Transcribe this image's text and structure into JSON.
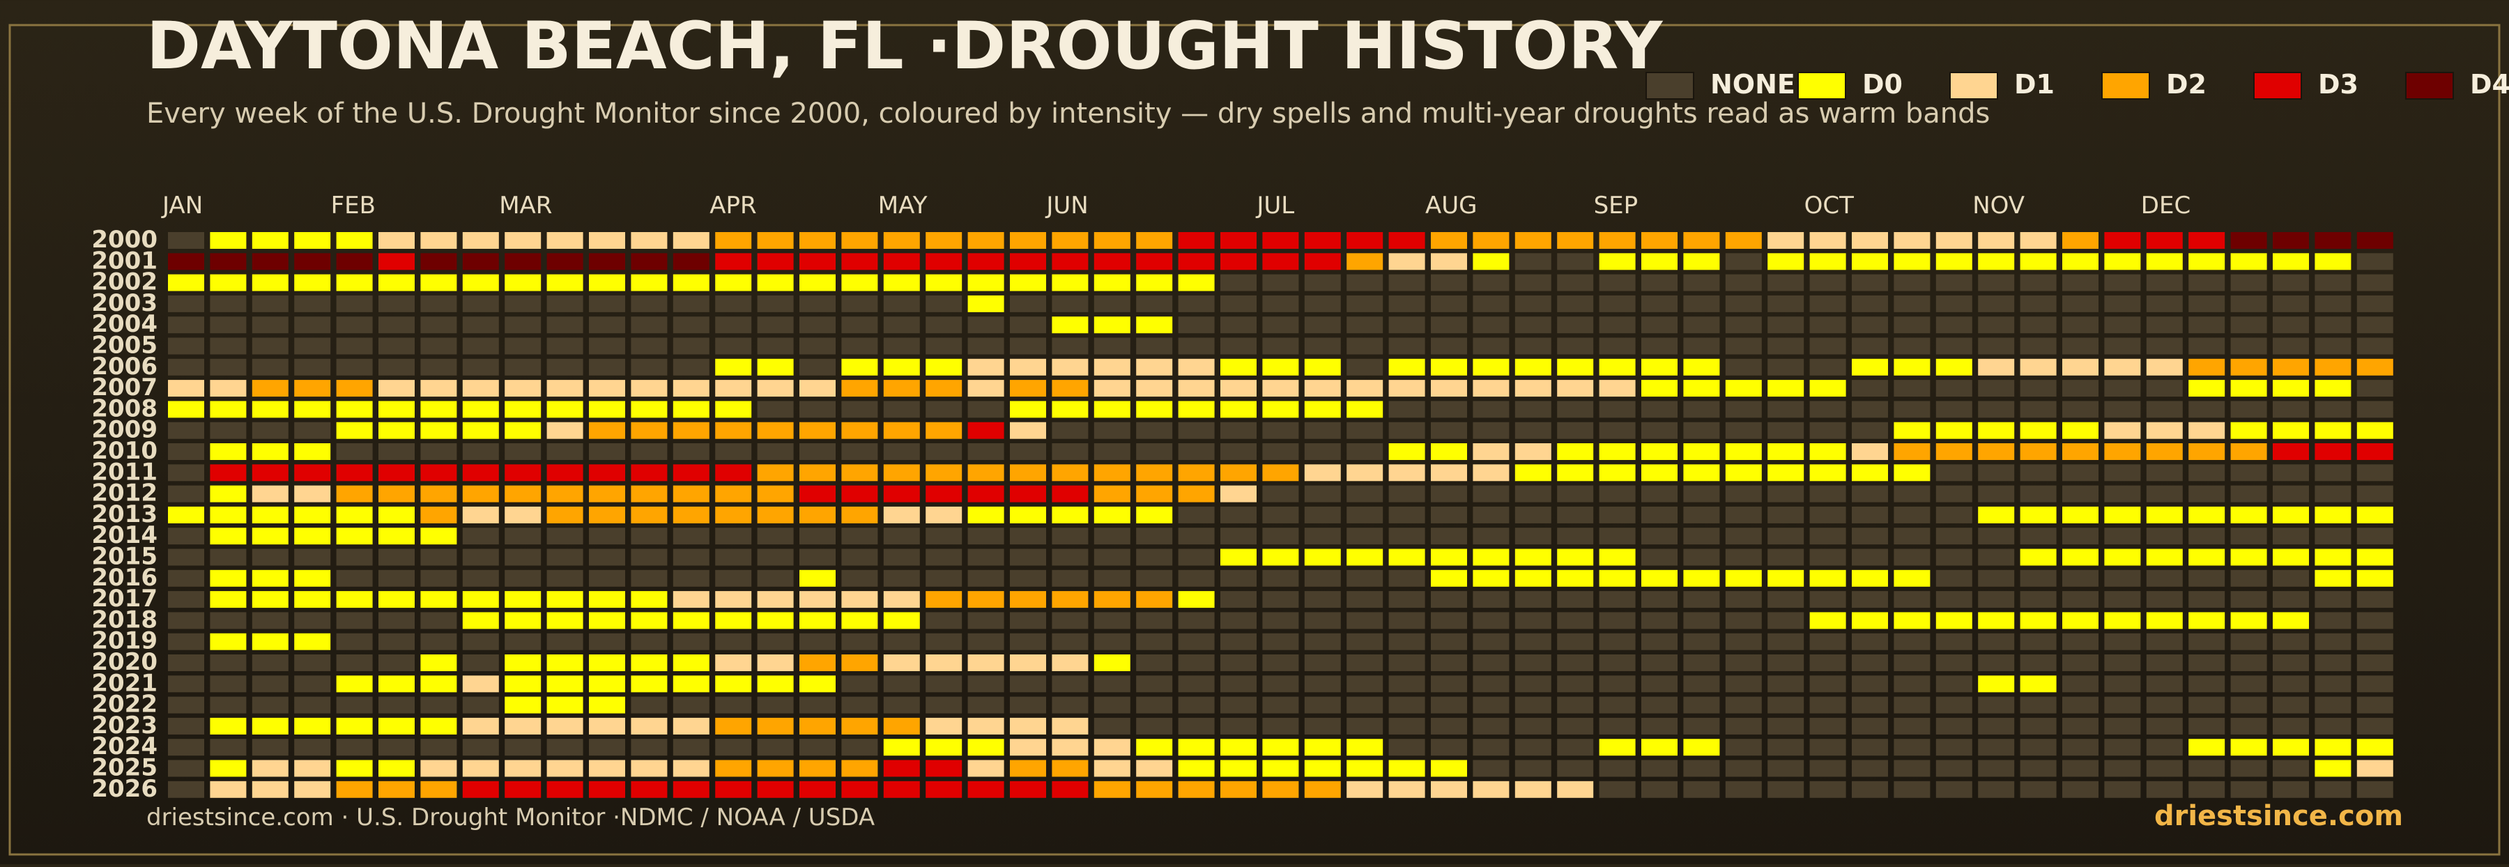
{
  "chart_data": {
    "type": "heatmap",
    "title": "DAYTONA BEACH, FL ·DROUGHT HISTORY",
    "subtitle": "Every week of the U.S. Drought Monitor since 2000, coloured by intensity — dry spells and multi-year droughts read as warm bands",
    "source": "driestsince.com  · U.S. Drought Monitor ·NDMC / NOAA / USDA",
    "brand": "driestsince.com",
    "levels": [
      {
        "name": "NONE",
        "color": "#4a3f2c"
      },
      {
        "name": "D0",
        "color": "#ffff00"
      },
      {
        "name": "D1",
        "color": "#ffd591"
      },
      {
        "name": "D2",
        "color": "#ffa500"
      },
      {
        "name": "D3",
        "color": "#e00000"
      },
      {
        "name": "D4",
        "color": "#6e0000"
      }
    ],
    "categories": [
      "JAN",
      null,
      null,
      null,
      "FEB",
      null,
      null,
      null,
      "MAR",
      null,
      null,
      null,
      null,
      "APR",
      null,
      null,
      null,
      "MAY",
      null,
      null,
      null,
      "JUN",
      null,
      null,
      null,
      null,
      "JUL",
      null,
      null,
      null,
      "AUG",
      null,
      null,
      null,
      "SEP",
      null,
      null,
      null,
      null,
      "OCT",
      null,
      null,
      null,
      "NOV",
      null,
      null,
      null,
      "DEC",
      null,
      null,
      null,
      null,
      null
    ],
    "y": [
      2000,
      2001,
      2002,
      2003,
      2004,
      2005,
      2006,
      2007,
      2008,
      2009,
      2010,
      2011,
      2012,
      2013,
      2014,
      2015,
      2016,
      2017,
      2018,
      2019,
      2020,
      2021,
      2022,
      2023,
      2024,
      2025,
      2026
    ],
    "values": [
      [
        0,
        1,
        1,
        1,
        1,
        2,
        2,
        2,
        2,
        2,
        2,
        2,
        2,
        3,
        3,
        3,
        3,
        3,
        3,
        3,
        3,
        3,
        3,
        3,
        4,
        4,
        4,
        4,
        4,
        4,
        3,
        3,
        3,
        3,
        3,
        3,
        3,
        3,
        2,
        2,
        2,
        2,
        2,
        2,
        2,
        3,
        4,
        4,
        4,
        5,
        5,
        5,
        5
      ],
      [
        5,
        5,
        5,
        5,
        5,
        4,
        5,
        5,
        5,
        5,
        5,
        5,
        5,
        4,
        4,
        4,
        4,
        4,
        4,
        4,
        4,
        4,
        4,
        4,
        4,
        4,
        4,
        4,
        3,
        2,
        2,
        1,
        0,
        0,
        1,
        1,
        1,
        0,
        1,
        1,
        1,
        1,
        1,
        1,
        1,
        1,
        1,
        1,
        1,
        1,
        1,
        1,
        0
      ],
      [
        1,
        1,
        1,
        1,
        1,
        1,
        1,
        1,
        1,
        1,
        1,
        1,
        1,
        1,
        1,
        1,
        1,
        1,
        1,
        1,
        1,
        1,
        1,
        1,
        1,
        0,
        0,
        0,
        0,
        0,
        0,
        0,
        0,
        0,
        0,
        0,
        0,
        0,
        0,
        0,
        0,
        0,
        0,
        0,
        0,
        0,
        0,
        0,
        0,
        0,
        0,
        0,
        0
      ],
      [
        0,
        0,
        0,
        0,
        0,
        0,
        0,
        0,
        0,
        0,
        0,
        0,
        0,
        0,
        0,
        0,
        0,
        0,
        0,
        1,
        0,
        0,
        0,
        0,
        0,
        0,
        0,
        0,
        0,
        0,
        0,
        0,
        0,
        0,
        0,
        0,
        0,
        0,
        0,
        0,
        0,
        0,
        0,
        0,
        0,
        0,
        0,
        0,
        0,
        0,
        0,
        0,
        0
      ],
      [
        0,
        0,
        0,
        0,
        0,
        0,
        0,
        0,
        0,
        0,
        0,
        0,
        0,
        0,
        0,
        0,
        0,
        0,
        0,
        0,
        0,
        1,
        1,
        1,
        0,
        0,
        0,
        0,
        0,
        0,
        0,
        0,
        0,
        0,
        0,
        0,
        0,
        0,
        0,
        0,
        0,
        0,
        0,
        0,
        0,
        0,
        0,
        0,
        0,
        0,
        0,
        0,
        0
      ],
      [
        0,
        0,
        0,
        0,
        0,
        0,
        0,
        0,
        0,
        0,
        0,
        0,
        0,
        0,
        0,
        0,
        0,
        0,
        0,
        0,
        0,
        0,
        0,
        0,
        0,
        0,
        0,
        0,
        0,
        0,
        0,
        0,
        0,
        0,
        0,
        0,
        0,
        0,
        0,
        0,
        0,
        0,
        0,
        0,
        0,
        0,
        0,
        0,
        0,
        0,
        0,
        0,
        0
      ],
      [
        0,
        0,
        0,
        0,
        0,
        0,
        0,
        0,
        0,
        0,
        0,
        0,
        0,
        1,
        1,
        0,
        1,
        1,
        1,
        2,
        2,
        2,
        2,
        2,
        2,
        1,
        1,
        1,
        0,
        1,
        1,
        1,
        1,
        1,
        1,
        1,
        1,
        0,
        0,
        0,
        1,
        1,
        1,
        2,
        2,
        2,
        2,
        2,
        3,
        3,
        3,
        3,
        3
      ],
      [
        2,
        2,
        3,
        3,
        3,
        2,
        2,
        2,
        2,
        2,
        2,
        2,
        2,
        2,
        2,
        2,
        3,
        3,
        3,
        2,
        3,
        3,
        2,
        2,
        2,
        2,
        2,
        2,
        2,
        2,
        2,
        2,
        2,
        2,
        2,
        1,
        1,
        1,
        1,
        1,
        0,
        0,
        0,
        0,
        0,
        0,
        0,
        0,
        1,
        1,
        1,
        1,
        0
      ],
      [
        1,
        1,
        1,
        1,
        1,
        1,
        1,
        1,
        1,
        1,
        1,
        1,
        1,
        1,
        0,
        0,
        0,
        0,
        0,
        0,
        1,
        1,
        1,
        1,
        1,
        1,
        1,
        1,
        1,
        0,
        0,
        0,
        0,
        0,
        0,
        0,
        0,
        0,
        0,
        0,
        0,
        0,
        0,
        0,
        0,
        0,
        0,
        0,
        0,
        0,
        0,
        0,
        0
      ],
      [
        0,
        0,
        0,
        0,
        1,
        1,
        1,
        1,
        1,
        2,
        3,
        3,
        3,
        3,
        3,
        3,
        3,
        3,
        3,
        4,
        2,
        0,
        0,
        0,
        0,
        0,
        0,
        0,
        0,
        0,
        0,
        0,
        0,
        0,
        0,
        0,
        0,
        0,
        0,
        0,
        0,
        1,
        1,
        1,
        1,
        1,
        2,
        2,
        2,
        1,
        1,
        1,
        1
      ],
      [
        0,
        1,
        1,
        1,
        0,
        0,
        0,
        0,
        0,
        0,
        0,
        0,
        0,
        0,
        0,
        0,
        0,
        0,
        0,
        0,
        0,
        0,
        0,
        0,
        0,
        0,
        0,
        0,
        0,
        1,
        1,
        2,
        2,
        1,
        1,
        1,
        1,
        1,
        1,
        1,
        2,
        3,
        3,
        3,
        3,
        3,
        3,
        3,
        3,
        3,
        4,
        4,
        4
      ],
      [
        0,
        4,
        4,
        4,
        4,
        4,
        4,
        4,
        4,
        4,
        4,
        4,
        4,
        4,
        3,
        3,
        3,
        3,
        3,
        3,
        3,
        3,
        3,
        3,
        3,
        3,
        3,
        2,
        2,
        2,
        2,
        2,
        1,
        1,
        1,
        1,
        1,
        1,
        1,
        1,
        1,
        1,
        0,
        0,
        0,
        0,
        0,
        0,
        0,
        0,
        0,
        0,
        0
      ],
      [
        0,
        1,
        2,
        2,
        3,
        3,
        3,
        3,
        3,
        3,
        3,
        3,
        3,
        3,
        3,
        4,
        4,
        4,
        4,
        4,
        4,
        4,
        3,
        3,
        3,
        2,
        0,
        0,
        0,
        0,
        0,
        0,
        0,
        0,
        0,
        0,
        0,
        0,
        0,
        0,
        0,
        0,
        0,
        0,
        0,
        0,
        0,
        0,
        0,
        0,
        0,
        0,
        0
      ],
      [
        1,
        1,
        1,
        1,
        1,
        1,
        3,
        2,
        2,
        3,
        3,
        3,
        3,
        3,
        3,
        3,
        3,
        2,
        2,
        1,
        1,
        1,
        1,
        1,
        0,
        0,
        0,
        0,
        0,
        0,
        0,
        0,
        0,
        0,
        0,
        0,
        0,
        0,
        0,
        0,
        0,
        0,
        0,
        1,
        1,
        1,
        1,
        1,
        1,
        1,
        1,
        1,
        1
      ],
      [
        0,
        1,
        1,
        1,
        1,
        1,
        1,
        0,
        0,
        0,
        0,
        0,
        0,
        0,
        0,
        0,
        0,
        0,
        0,
        0,
        0,
        0,
        0,
        0,
        0,
        0,
        0,
        0,
        0,
        0,
        0,
        0,
        0,
        0,
        0,
        0,
        0,
        0,
        0,
        0,
        0,
        0,
        0,
        0,
        0,
        0,
        0,
        0,
        0,
        0,
        0,
        0,
        0
      ],
      [
        0,
        0,
        0,
        0,
        0,
        0,
        0,
        0,
        0,
        0,
        0,
        0,
        0,
        0,
        0,
        0,
        0,
        0,
        0,
        0,
        0,
        0,
        0,
        0,
        0,
        1,
        1,
        1,
        1,
        1,
        1,
        1,
        1,
        1,
        1,
        0,
        0,
        0,
        0,
        0,
        0,
        0,
        0,
        0,
        1,
        1,
        1,
        1,
        1,
        1,
        1,
        1,
        1
      ],
      [
        0,
        1,
        1,
        1,
        0,
        0,
        0,
        0,
        0,
        0,
        0,
        0,
        0,
        0,
        0,
        1,
        0,
        0,
        0,
        0,
        0,
        0,
        0,
        0,
        0,
        0,
        0,
        0,
        0,
        0,
        1,
        1,
        1,
        1,
        1,
        1,
        1,
        1,
        1,
        1,
        1,
        1,
        0,
        0,
        0,
        0,
        0,
        0,
        0,
        0,
        0,
        1,
        1
      ],
      [
        0,
        1,
        1,
        1,
        1,
        1,
        1,
        1,
        1,
        1,
        1,
        1,
        2,
        2,
        2,
        2,
        2,
        2,
        3,
        3,
        3,
        3,
        3,
        3,
        1,
        0,
        0,
        0,
        0,
        0,
        0,
        0,
        0,
        0,
        0,
        0,
        0,
        0,
        0,
        0,
        0,
        0,
        0,
        0,
        0,
        0,
        0,
        0,
        0,
        0,
        0,
        0,
        0
      ],
      [
        0,
        0,
        0,
        0,
        0,
        0,
        0,
        1,
        1,
        1,
        1,
        1,
        1,
        1,
        1,
        1,
        1,
        1,
        0,
        0,
        0,
        0,
        0,
        0,
        0,
        0,
        0,
        0,
        0,
        0,
        0,
        0,
        0,
        0,
        0,
        0,
        0,
        0,
        0,
        1,
        1,
        1,
        1,
        1,
        1,
        1,
        1,
        1,
        1,
        1,
        1,
        0,
        0
      ],
      [
        0,
        1,
        1,
        1,
        0,
        0,
        0,
        0,
        0,
        0,
        0,
        0,
        0,
        0,
        0,
        0,
        0,
        0,
        0,
        0,
        0,
        0,
        0,
        0,
        0,
        0,
        0,
        0,
        0,
        0,
        0,
        0,
        0,
        0,
        0,
        0,
        0,
        0,
        0,
        0,
        0,
        0,
        0,
        0,
        0,
        0,
        0,
        0,
        0,
        0,
        0,
        0,
        0
      ],
      [
        0,
        0,
        0,
        0,
        0,
        0,
        1,
        0,
        1,
        1,
        1,
        1,
        1,
        2,
        2,
        3,
        3,
        2,
        2,
        2,
        2,
        2,
        1,
        0,
        0,
        0,
        0,
        0,
        0,
        0,
        0,
        0,
        0,
        0,
        0,
        0,
        0,
        0,
        0,
        0,
        0,
        0,
        0,
        0,
        0,
        0,
        0,
        0,
        0,
        0,
        0,
        0,
        0
      ],
      [
        0,
        0,
        0,
        0,
        1,
        1,
        1,
        2,
        1,
        1,
        1,
        1,
        1,
        1,
        1,
        1,
        0,
        0,
        0,
        0,
        0,
        0,
        0,
        0,
        0,
        0,
        0,
        0,
        0,
        0,
        0,
        0,
        0,
        0,
        0,
        0,
        0,
        0,
        0,
        0,
        0,
        0,
        0,
        1,
        1,
        0,
        0,
        0,
        0,
        0,
        0,
        0,
        0
      ],
      [
        0,
        0,
        0,
        0,
        0,
        0,
        0,
        0,
        1,
        1,
        1,
        0,
        0,
        0,
        0,
        0,
        0,
        0,
        0,
        0,
        0,
        0,
        0,
        0,
        0,
        0,
        0,
        0,
        0,
        0,
        0,
        0,
        0,
        0,
        0,
        0,
        0,
        0,
        0,
        0,
        0,
        0,
        0,
        0,
        0,
        0,
        0,
        0,
        0,
        0,
        0,
        0,
        0
      ],
      [
        0,
        1,
        1,
        1,
        1,
        1,
        1,
        2,
        2,
        2,
        2,
        2,
        2,
        3,
        3,
        3,
        3,
        3,
        2,
        2,
        2,
        2,
        0,
        0,
        0,
        0,
        0,
        0,
        0,
        0,
        0,
        0,
        0,
        0,
        0,
        0,
        0,
        0,
        0,
        0,
        0,
        0,
        0,
        0,
        0,
        0,
        0,
        0,
        0,
        0,
        0,
        0,
        0
      ],
      [
        0,
        0,
        0,
        0,
        0,
        0,
        0,
        0,
        0,
        0,
        0,
        0,
        0,
        0,
        0,
        0,
        0,
        1,
        1,
        1,
        2,
        2,
        2,
        1,
        1,
        1,
        1,
        1,
        1,
        0,
        0,
        0,
        0,
        0,
        1,
        1,
        1,
        0,
        0,
        0,
        0,
        0,
        0,
        0,
        0,
        0,
        0,
        0,
        1,
        1,
        1,
        1,
        1
      ],
      [
        0,
        1,
        2,
        2,
        1,
        1,
        2,
        2,
        2,
        2,
        2,
        2,
        2,
        3,
        3,
        3,
        3,
        4,
        4,
        2,
        3,
        3,
        2,
        2,
        1,
        1,
        1,
        1,
        1,
        1,
        1,
        0,
        0,
        0,
        0,
        0,
        0,
        0,
        0,
        0,
        0,
        0,
        0,
        0,
        0,
        0,
        0,
        0,
        0,
        0,
        0,
        1,
        2
      ],
      [
        0,
        2,
        2,
        2,
        3,
        3,
        3,
        4,
        4,
        4,
        4,
        4,
        4,
        4,
        4,
        4,
        4,
        4,
        4,
        4,
        4,
        4,
        3,
        3,
        3,
        3,
        3,
        3,
        2,
        2,
        2,
        2,
        2,
        2,
        0,
        0,
        0,
        0,
        0,
        0,
        0,
        0,
        0,
        0,
        0,
        0,
        0,
        0,
        0,
        0,
        0,
        0,
        0
      ]
    ]
  }
}
